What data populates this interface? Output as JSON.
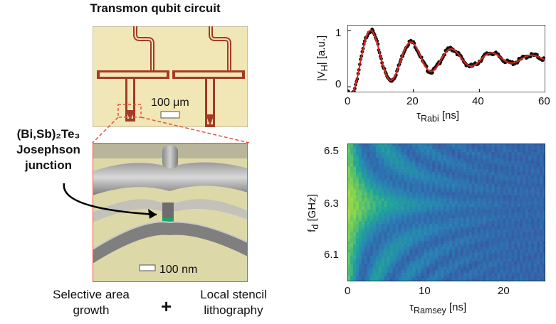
{
  "figure": {
    "left_panel": {
      "title": "Transmon qubit circuit",
      "junction_label_lines": [
        "(Bi,Sb)₂Te₃",
        "Josephson",
        "junction"
      ],
      "scale_bar_top": "100 μm",
      "scale_bar_bottom": "100 nm",
      "caption_left_lines": [
        "Selective area",
        "growth"
      ],
      "caption_plus": "+",
      "caption_right_lines": [
        "Local stencil",
        "lithography"
      ],
      "colors": {
        "pcb": "#f1e6b6",
        "trace": "#a43b25",
        "frame": "#e8533b",
        "junction": "#1ea56a"
      }
    },
    "top_plot": {
      "ylabel": "|V",
      "ylabel_sub": "H",
      "ylabel_tail": "| [a.u.]",
      "xlabel": "τ",
      "xlabel_sub": "Rabi",
      "xlabel_tail": " [ns]",
      "xticks": [
        "0",
        "20",
        "40",
        "60"
      ],
      "yticks": [
        "0",
        "1"
      ]
    },
    "bottom_plot": {
      "ylabel": "f",
      "ylabel_sub": "d",
      "ylabel_tail": " [GHz]",
      "xlabel": "τ",
      "xlabel_sub": "Ramsey",
      "xlabel_tail": " [ns]",
      "xticks": [
        "0",
        "10",
        "20"
      ],
      "yticks": [
        "6.5",
        "6.3",
        "6.1"
      ]
    }
  },
  "chart_data": [
    {
      "type": "scatter",
      "x_range": [
        0,
        60
      ],
      "y_range": [
        0,
        1
      ],
      "xlim": [
        0,
        60
      ],
      "ylim": [
        -0.1,
        1.1
      ],
      "series": [
        {
          "style": "black points",
          "model": "damped oscillation",
          "period_ns": 12.2,
          "first_peak_ns": 7.2,
          "final_value": 0.5
        },
        {
          "style": "red fit line",
          "model": "damped oscillation",
          "period_ns": 12.2,
          "first_peak_ns": 7.2,
          "final_value": 0.5
        }
      ],
      "peaks": [
        [
          7.2,
          1.0
        ],
        [
          19.0,
          0.83
        ],
        [
          31.0,
          0.71
        ],
        [
          43.0,
          0.64
        ],
        [
          55.0,
          0.58
        ]
      ],
      "troughs": [
        [
          0,
          0.07
        ],
        [
          13.2,
          0.1
        ],
        [
          25.0,
          0.28
        ],
        [
          37.0,
          0.37
        ],
        [
          49.0,
          0.43
        ]
      ],
      "colors": {
        "points": "#111111",
        "fit": "#e0241b"
      }
    },
    {
      "type": "heatmap",
      "xlim": [
        0,
        25
      ],
      "ylim": [
        6.0,
        6.5
      ],
      "center_frequency_GHz": 6.28,
      "colormap": [
        "#2d1b6e",
        "#3b4fa0",
        "#2a7fb5",
        "#22a59a",
        "#7ad151",
        "#f0e53a"
      ],
      "description_values": {
        "max_at_x": 0,
        "fringe_decay_ns": 8
      }
    }
  ]
}
